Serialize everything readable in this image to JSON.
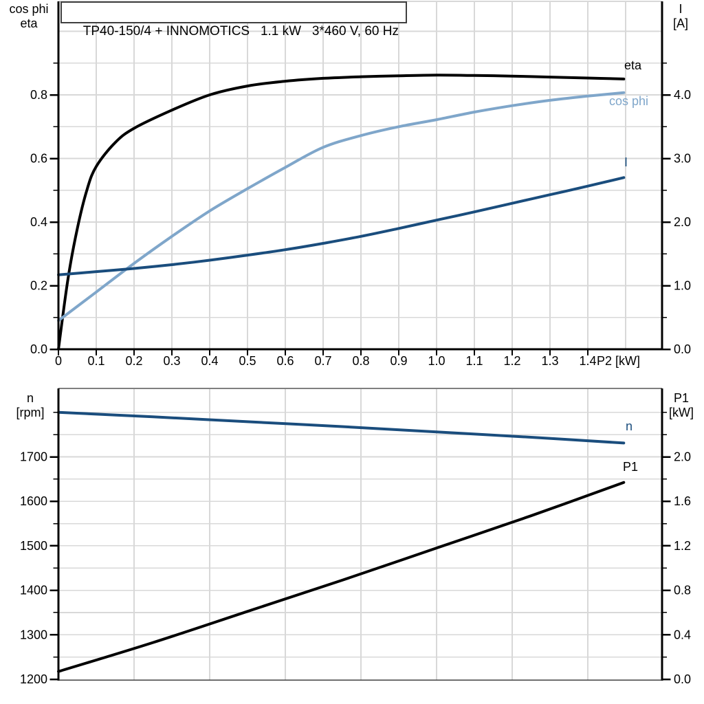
{
  "palette": {
    "black": "#000000",
    "dark_blue": "#1a4d7d",
    "light_blue": "#7fa6ca",
    "grid": "#d8d8d8",
    "frame_gray": "#7f7f7f",
    "baseline_gray": "#404040"
  },
  "chart_data": [
    {
      "type": "line",
      "title": "TP40-150/4 + INNOMOTICS   1.1 kW   3*460 V, 60 Hz",
      "grid": {
        "on": true,
        "x_step": 0.1,
        "y_left_step": 0.1,
        "legend": "labels at right edge of plot"
      },
      "x_axis": {
        "label": "P2 [kW]",
        "range": [
          0,
          1.596
        ],
        "ticks": [
          0,
          0.1,
          0.2,
          0.3,
          0.4,
          0.5,
          0.6,
          0.7,
          0.8,
          0.9,
          1.0,
          1.1,
          1.2,
          1.3,
          1.4
        ],
        "tick_labels": [
          "0",
          "0.1",
          "0.2",
          "0.3",
          "0.4",
          "0.5",
          "0.6",
          "0.7",
          "0.8",
          "0.9",
          "1.0",
          "1.1",
          "1.2",
          "1.3",
          "1.4"
        ]
      },
      "y_left": {
        "title_lines": [
          "cos phi",
          "eta"
        ],
        "range": [
          0,
          1.094
        ],
        "major_ticks": [
          0.8,
          0.6,
          0.4,
          0.2,
          0
        ],
        "major_labels": [
          "0.8",
          "0.6",
          "0.4",
          "0.2",
          "0.0"
        ],
        "minor_ticks": [
          0.1,
          0.3,
          0.5,
          0.7,
          0.9
        ]
      },
      "y_right": {
        "title_lines": [
          "I",
          "[A]"
        ],
        "range": [
          0,
          5.47
        ],
        "major_ticks": [
          4,
          3,
          2,
          1,
          0
        ],
        "major_labels": [
          "4.0",
          "3.0",
          "2.0",
          "1.0",
          "0.0"
        ],
        "minor_ticks": [
          0.5,
          1.5,
          2.5,
          3.5,
          4.5
        ]
      },
      "series": [
        {
          "name": "eta",
          "axis": "left",
          "color": "#000000",
          "x": [
            0,
            0.025,
            0.05,
            0.075,
            0.1,
            0.15,
            0.2,
            0.3,
            0.4,
            0.5,
            0.6,
            0.7,
            0.8,
            0.9,
            1.0,
            1.1,
            1.2,
            1.3,
            1.4,
            1.495
          ],
          "y": [
            0,
            0.22,
            0.38,
            0.5,
            0.575,
            0.65,
            0.695,
            0.752,
            0.8,
            0.828,
            0.843,
            0.852,
            0.857,
            0.86,
            0.862,
            0.861,
            0.859,
            0.856,
            0.853,
            0.85
          ]
        },
        {
          "name": "cos phi",
          "axis": "left",
          "color": "#7fa6ca",
          "x": [
            0,
            0.1,
            0.2,
            0.3,
            0.4,
            0.5,
            0.6,
            0.7,
            0.8,
            0.9,
            1.0,
            1.1,
            1.2,
            1.3,
            1.4,
            1.495
          ],
          "y": [
            0.09,
            0.18,
            0.27,
            0.355,
            0.435,
            0.505,
            0.572,
            0.635,
            0.672,
            0.7,
            0.722,
            0.746,
            0.766,
            0.783,
            0.796,
            0.807
          ]
        },
        {
          "name": "I",
          "axis": "right",
          "color": "#1a4d7d",
          "x": [
            0,
            0.1,
            0.2,
            0.3,
            0.4,
            0.5,
            0.6,
            0.7,
            0.8,
            0.9,
            1.0,
            1.1,
            1.2,
            1.3,
            1.4,
            1.495
          ],
          "y": [
            1.17,
            1.22,
            1.27,
            1.33,
            1.4,
            1.48,
            1.565,
            1.665,
            1.775,
            1.9,
            2.03,
            2.16,
            2.295,
            2.43,
            2.565,
            2.7
          ]
        }
      ]
    },
    {
      "type": "line",
      "title": "",
      "grid": {
        "on": true,
        "x_step": 0.2,
        "y_left_step_rpm": 50
      },
      "x_axis": {
        "label": "",
        "range": [
          0,
          1.596
        ],
        "ticks": [],
        "tick_labels": []
      },
      "y_left": {
        "title_lines": [
          "n",
          "[rpm]"
        ],
        "range": [
          1200,
          1854
        ],
        "major_ticks": [
          1700,
          1600,
          1500,
          1400,
          1300,
          1200
        ],
        "major_labels": [
          "1700",
          "1600",
          "1500",
          "1400",
          "1300",
          "1200"
        ],
        "minor_ticks": [
          1250,
          1350,
          1450,
          1550,
          1650,
          1750,
          1800
        ]
      },
      "y_right": {
        "title_lines": [
          "P1",
          "[kW]"
        ],
        "range": [
          0,
          2.61
        ],
        "major_ticks": [
          2.0,
          1.6,
          1.2,
          0.8,
          0.4,
          0
        ],
        "major_labels": [
          "2.0",
          "1.6",
          "1.2",
          "0.8",
          "0.4",
          "0.0"
        ],
        "minor_ticks": [
          0.2,
          0.6,
          1.0,
          1.4,
          1.8,
          2.2,
          2.4
        ]
      },
      "series": [
        {
          "name": "n",
          "axis": "left",
          "color": "#1a4d7d",
          "x": [
            0,
            0.25,
            0.5,
            0.75,
            1.0,
            1.25,
            1.495
          ],
          "y": [
            1800,
            1790,
            1779,
            1768,
            1756,
            1744,
            1731
          ]
        },
        {
          "name": "P1",
          "axis": "right",
          "color": "#000000",
          "x": [
            0,
            0.25,
            0.5,
            0.75,
            1.0,
            1.25,
            1.495
          ],
          "y": [
            0.07,
            0.33,
            0.61,
            0.89,
            1.18,
            1.47,
            1.77
          ]
        }
      ]
    }
  ]
}
